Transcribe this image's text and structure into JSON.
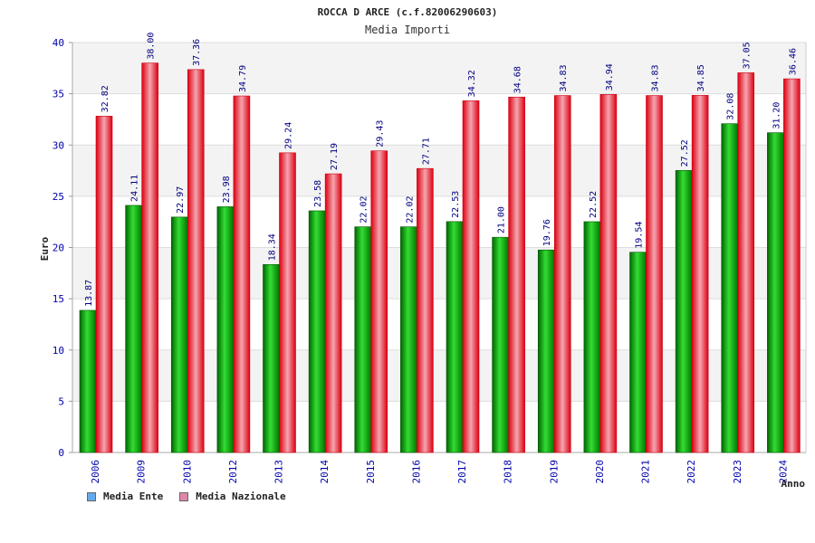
{
  "chart_data": {
    "type": "bar",
    "title": "ROCCA D ARCE (c.f.82006290603)",
    "subtitle": "Media Importi",
    "xlabel": "Anno",
    "ylabel": "Euro",
    "ylim": [
      0,
      40
    ],
    "yticks": [
      0,
      5,
      10,
      15,
      20,
      25,
      30,
      35,
      40
    ],
    "grid": true,
    "legend_position": "bottom-left",
    "categories": [
      "2006",
      "2009",
      "2010",
      "2012",
      "2013",
      "2014",
      "2015",
      "2016",
      "2017",
      "2018",
      "2019",
      "2020",
      "2021",
      "2022",
      "2023",
      "2024"
    ],
    "series": [
      {
        "name": "Media Ente",
        "color": "#00aa00",
        "values": [
          13.87,
          24.11,
          22.97,
          23.98,
          18.34,
          23.58,
          22.02,
          22.02,
          22.53,
          21.0,
          19.76,
          22.52,
          19.54,
          27.52,
          32.08,
          31.2
        ],
        "labels": [
          "13.87",
          "24.11",
          "22.97",
          "23.98",
          "18.34",
          "23.58",
          "22.02",
          "22.02",
          "22.53",
          "21.00",
          "19.76",
          "22.52",
          "19.54",
          "27.52",
          "32.08",
          "31.20"
        ]
      },
      {
        "name": "Media Nazionale",
        "color": "#ee1122",
        "values": [
          32.82,
          38.0,
          37.36,
          34.79,
          29.24,
          27.19,
          29.43,
          27.71,
          34.32,
          34.68,
          34.83,
          34.94,
          34.83,
          34.85,
          37.05,
          36.46
        ],
        "labels": [
          "32.82",
          "38.00",
          "37.36",
          "34.79",
          "29.24",
          "27.19",
          "29.43",
          "27.71",
          "34.32",
          "34.68",
          "34.83",
          "34.94",
          "34.83",
          "34.85",
          "37.05",
          "36.46"
        ]
      }
    ]
  },
  "legend": {
    "items": [
      {
        "label": "Media Ente",
        "swatch": "#66aaee"
      },
      {
        "label": "Media Nazionale",
        "swatch": "#dd88aa"
      }
    ]
  }
}
